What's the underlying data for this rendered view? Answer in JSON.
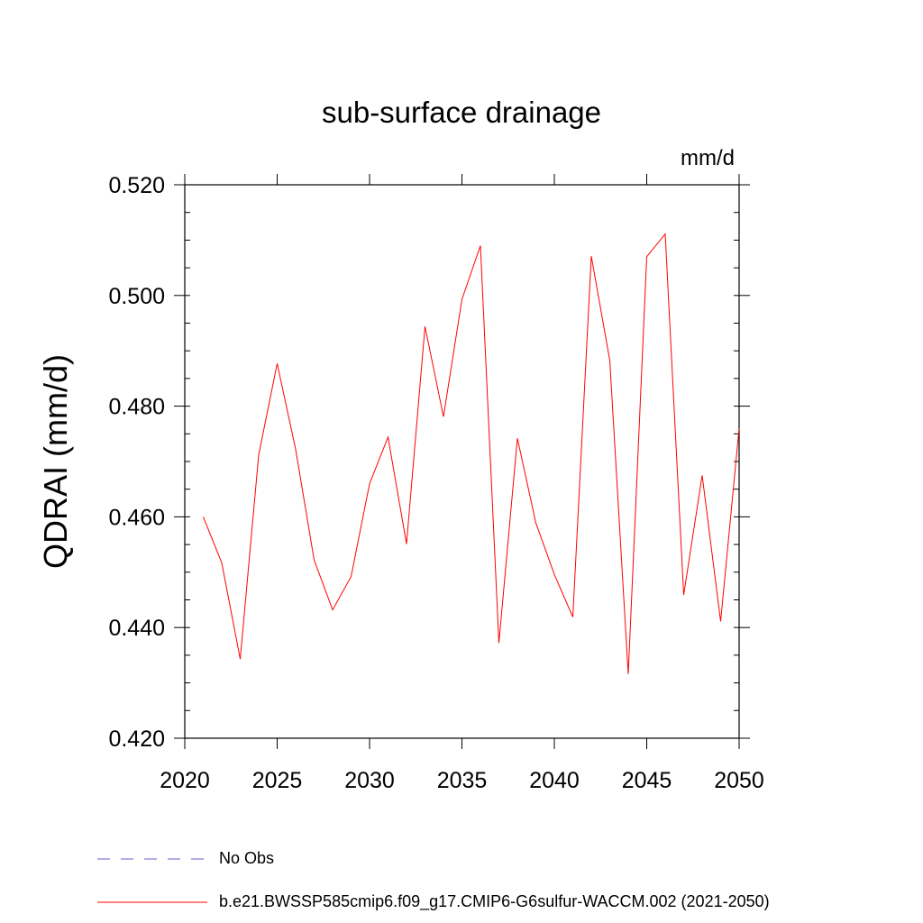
{
  "chart_data": {
    "type": "line",
    "title": "sub-surface drainage",
    "units": "mm/d",
    "ylabel": "QDRAI  (mm/d)",
    "xlabel": "",
    "xlim": [
      2020,
      2050
    ],
    "ylim": [
      0.42,
      0.52
    ],
    "x_ticks": [
      2020,
      2025,
      2030,
      2035,
      2040,
      2045,
      2050
    ],
    "y_ticks": [
      0.42,
      0.44,
      0.46,
      0.48,
      0.5,
      0.52
    ],
    "x_tick_labels": [
      "2020",
      "2025",
      "2030",
      "2035",
      "2040",
      "2045",
      "2050"
    ],
    "y_tick_labels": [
      "0.420",
      "0.440",
      "0.460",
      "0.480",
      "0.500",
      "0.520"
    ],
    "series": [
      {
        "name": "b.e21.BWSSP585cmip6.f09_g17.CMIP6-G6sulfur-WACCM.002 (2021-2050)",
        "color": "#ff0000",
        "x": [
          2021,
          2022,
          2023,
          2024,
          2025,
          2026,
          2027,
          2028,
          2029,
          2030,
          2031,
          2032,
          2033,
          2034,
          2035,
          2036,
          2037,
          2038,
          2039,
          2040,
          2041,
          2042,
          2043,
          2044,
          2045,
          2046,
          2047,
          2048,
          2049,
          2050
        ],
        "values": [
          0.46,
          0.4517,
          0.4343,
          0.4712,
          0.4877,
          0.4722,
          0.4522,
          0.4432,
          0.4492,
          0.466,
          0.4744,
          0.4551,
          0.4944,
          0.4781,
          0.4993,
          0.509,
          0.4372,
          0.4742,
          0.4589,
          0.4496,
          0.4419,
          0.5071,
          0.4883,
          0.4316,
          0.507,
          0.5111,
          0.4459,
          0.4675,
          0.4411,
          0.476
        ]
      }
    ],
    "legend": {
      "placement": "bottom",
      "entries": [
        {
          "label": "No Obs",
          "style": "dashed",
          "color": "#6a5acd"
        },
        {
          "label": "b.e21.BWSSP585cmip6.f09_g17.CMIP6-G6sulfur-WACCM.002 (2021-2050)",
          "style": "solid",
          "color": "#ff0000"
        }
      ]
    },
    "grid": false
  }
}
